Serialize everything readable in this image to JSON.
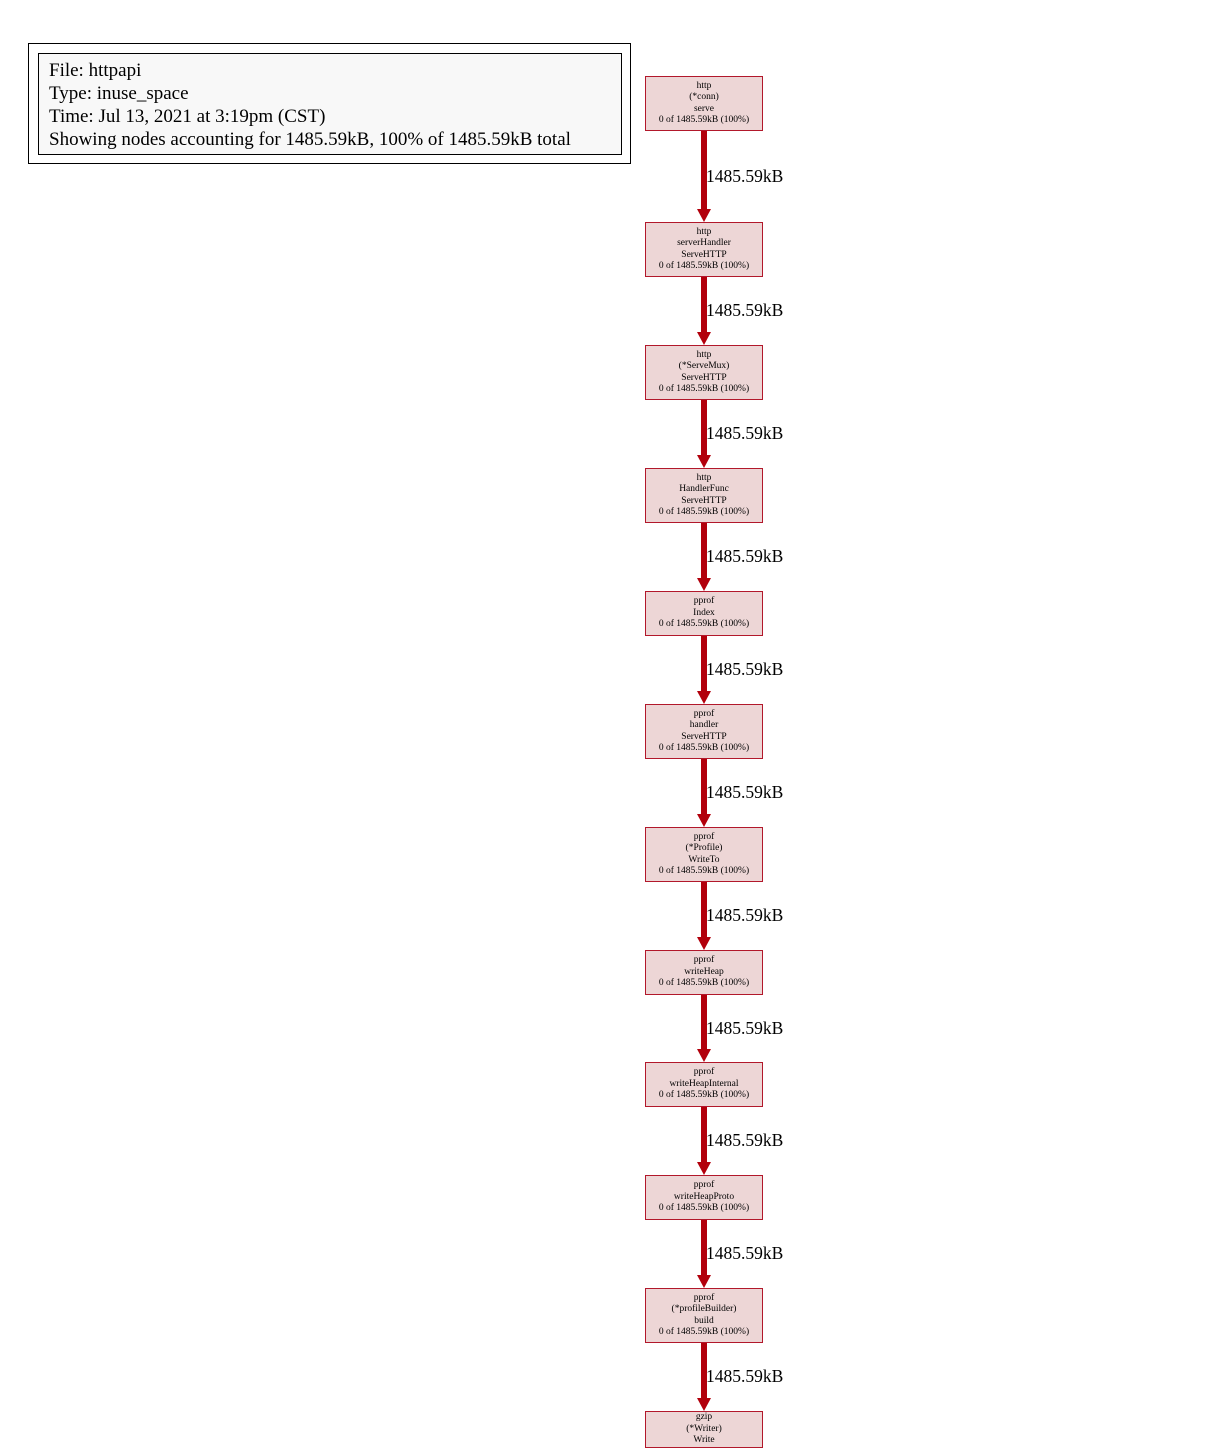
{
  "legend": {
    "file": "File: httpapi",
    "type": "Type: inuse_space",
    "time": "Time: Jul 13, 2021 at 3:19pm (CST)",
    "showing": "Showing nodes accounting for 1485.59kB, 100% of 1485.59kB total"
  },
  "colors": {
    "edge": "#b2000c",
    "node_border": "#b2182b",
    "node_fill": "#edd6d6"
  },
  "nodes": [
    {
      "lines": [
        "http",
        "(*conn)",
        "serve",
        "0 of 1485.59kB (100%)"
      ]
    },
    {
      "lines": [
        "http",
        "serverHandler",
        "ServeHTTP",
        "0 of 1485.59kB (100%)"
      ]
    },
    {
      "lines": [
        "http",
        "(*ServeMux)",
        "ServeHTTP",
        "0 of 1485.59kB (100%)"
      ]
    },
    {
      "lines": [
        "http",
        "HandlerFunc",
        "ServeHTTP",
        "0 of 1485.59kB (100%)"
      ]
    },
    {
      "lines": [
        "pprof",
        "Index",
        "0 of 1485.59kB (100%)"
      ]
    },
    {
      "lines": [
        "pprof",
        "handler",
        "ServeHTTP",
        "0 of 1485.59kB (100%)"
      ]
    },
    {
      "lines": [
        "pprof",
        "(*Profile)",
        "WriteTo",
        "0 of 1485.59kB (100%)"
      ]
    },
    {
      "lines": [
        "pprof",
        "writeHeap",
        "0 of 1485.59kB (100%)"
      ]
    },
    {
      "lines": [
        "pprof",
        "writeHeapInternal",
        "0 of 1485.59kB (100%)"
      ]
    },
    {
      "lines": [
        "pprof",
        "writeHeapProto",
        "0 of 1485.59kB (100%)"
      ]
    },
    {
      "lines": [
        "pprof",
        "(*profileBuilder)",
        "build",
        "0 of 1485.59kB (100%)"
      ]
    },
    {
      "lines": [
        "gzip",
        "(*Writer)",
        "Write"
      ]
    }
  ],
  "edges": [
    {
      "label": "1485.59kB"
    },
    {
      "label": "1485.59kB"
    },
    {
      "label": "1485.59kB"
    },
    {
      "label": "1485.59kB"
    },
    {
      "label": "1485.59kB"
    },
    {
      "label": "1485.59kB"
    },
    {
      "label": "1485.59kB"
    },
    {
      "label": "1485.59kB"
    },
    {
      "label": "1485.59kB"
    },
    {
      "label": "1485.59kB"
    },
    {
      "label": "1485.59kB"
    }
  ]
}
